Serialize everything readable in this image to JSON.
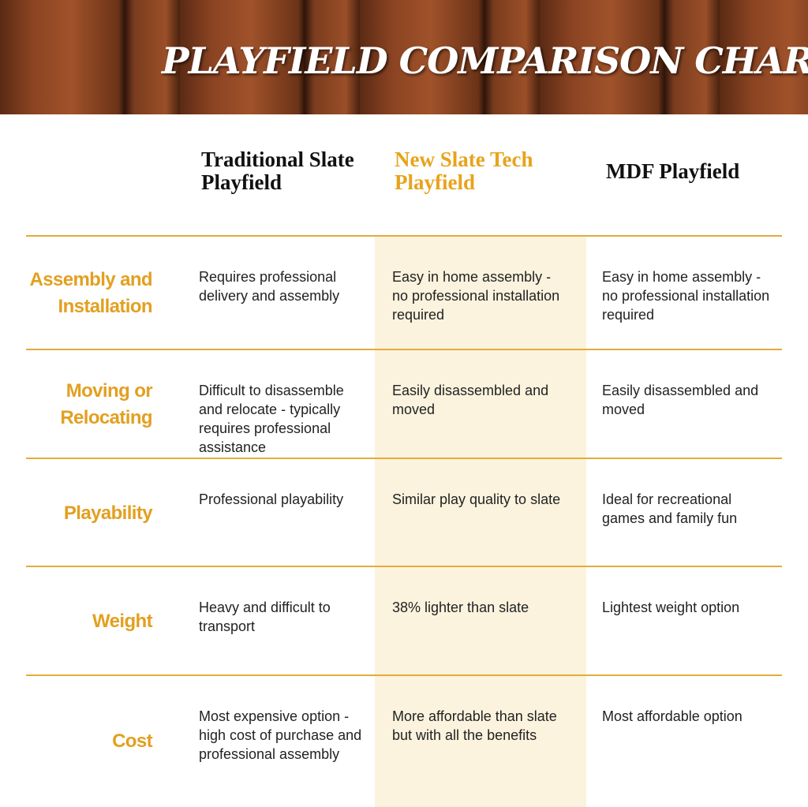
{
  "header": {
    "title": "PLAYFIELD COMPARISON CHART"
  },
  "table": {
    "columns": [
      "Traditional Slate Playfield",
      "New Slate Tech Playfield",
      "MDF Playfield"
    ],
    "rows": [
      {
        "label": "Assembly and Installation",
        "cells": [
          "Requires professional delivery and assembly",
          "Easy in home assembly - no professional installation required",
          "Easy in home assembly - no professional installation required"
        ]
      },
      {
        "label": "Moving or Relocating",
        "cells": [
          "Difficult to disassemble and relocate - typically requires professional assistance",
          "Easily disassembled and moved",
          "Easily disassembled and moved"
        ]
      },
      {
        "label": "Playability",
        "cells": [
          "Professional playability",
          "Similar play quality to slate",
          "Ideal for recreational games and family fun"
        ]
      },
      {
        "label": "Weight",
        "cells": [
          "Heavy and difficult to transport",
          "38% lighter than slate",
          "Lightest weight option"
        ]
      },
      {
        "label": "Cost",
        "cells": [
          "Most expensive option - high cost of purchase and professional assembly",
          "More affordable than slate but with all the benefits",
          "Most affordable option"
        ]
      }
    ]
  }
}
